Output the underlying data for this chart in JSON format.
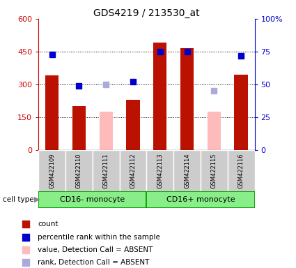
{
  "title": "GDS4219 / 213530_at",
  "samples": [
    "GSM422109",
    "GSM422110",
    "GSM422111",
    "GSM422112",
    "GSM422113",
    "GSM422114",
    "GSM422115",
    "GSM422116"
  ],
  "count_values": [
    340,
    200,
    175,
    230,
    490,
    465,
    175,
    345
  ],
  "count_absent": [
    false,
    false,
    true,
    false,
    false,
    false,
    true,
    false
  ],
  "rank_values": [
    73,
    49,
    50,
    52,
    75,
    75,
    45,
    72
  ],
  "rank_absent": [
    false,
    false,
    true,
    false,
    false,
    false,
    true,
    false
  ],
  "group1_label": "CD16- monocyte",
  "group2_label": "CD16+ monocyte",
  "group1_indices": [
    0,
    1,
    2,
    3
  ],
  "group2_indices": [
    4,
    5,
    6,
    7
  ],
  "cell_type_label": "cell type",
  "left_axis_color": "#cc0000",
  "right_axis_color": "#0000cc",
  "ylim_left": [
    0,
    600
  ],
  "ylim_right": [
    0,
    100
  ],
  "yticks_left": [
    0,
    150,
    300,
    450,
    600
  ],
  "ytick_labels_left": [
    "0",
    "150",
    "300",
    "450",
    "600"
  ],
  "yticks_right": [
    0,
    25,
    50,
    75,
    100
  ],
  "ytick_labels_right": [
    "0",
    "25",
    "50",
    "75",
    "100%"
  ],
  "bar_color_present": "#bb1100",
  "bar_color_absent": "#ffbbbb",
  "rank_color_present": "#0000cc",
  "rank_color_absent": "#aaaadd",
  "bg_color": "#ffffff",
  "sample_label_bg": "#cccccc",
  "group_bg": "#88ee88",
  "group_border": "#009900",
  "legend_items": [
    {
      "label": "count",
      "color": "#bb1100"
    },
    {
      "label": "percentile rank within the sample",
      "color": "#0000cc"
    },
    {
      "label": "value, Detection Call = ABSENT",
      "color": "#ffbbbb"
    },
    {
      "label": "rank, Detection Call = ABSENT",
      "color": "#aaaadd"
    }
  ]
}
